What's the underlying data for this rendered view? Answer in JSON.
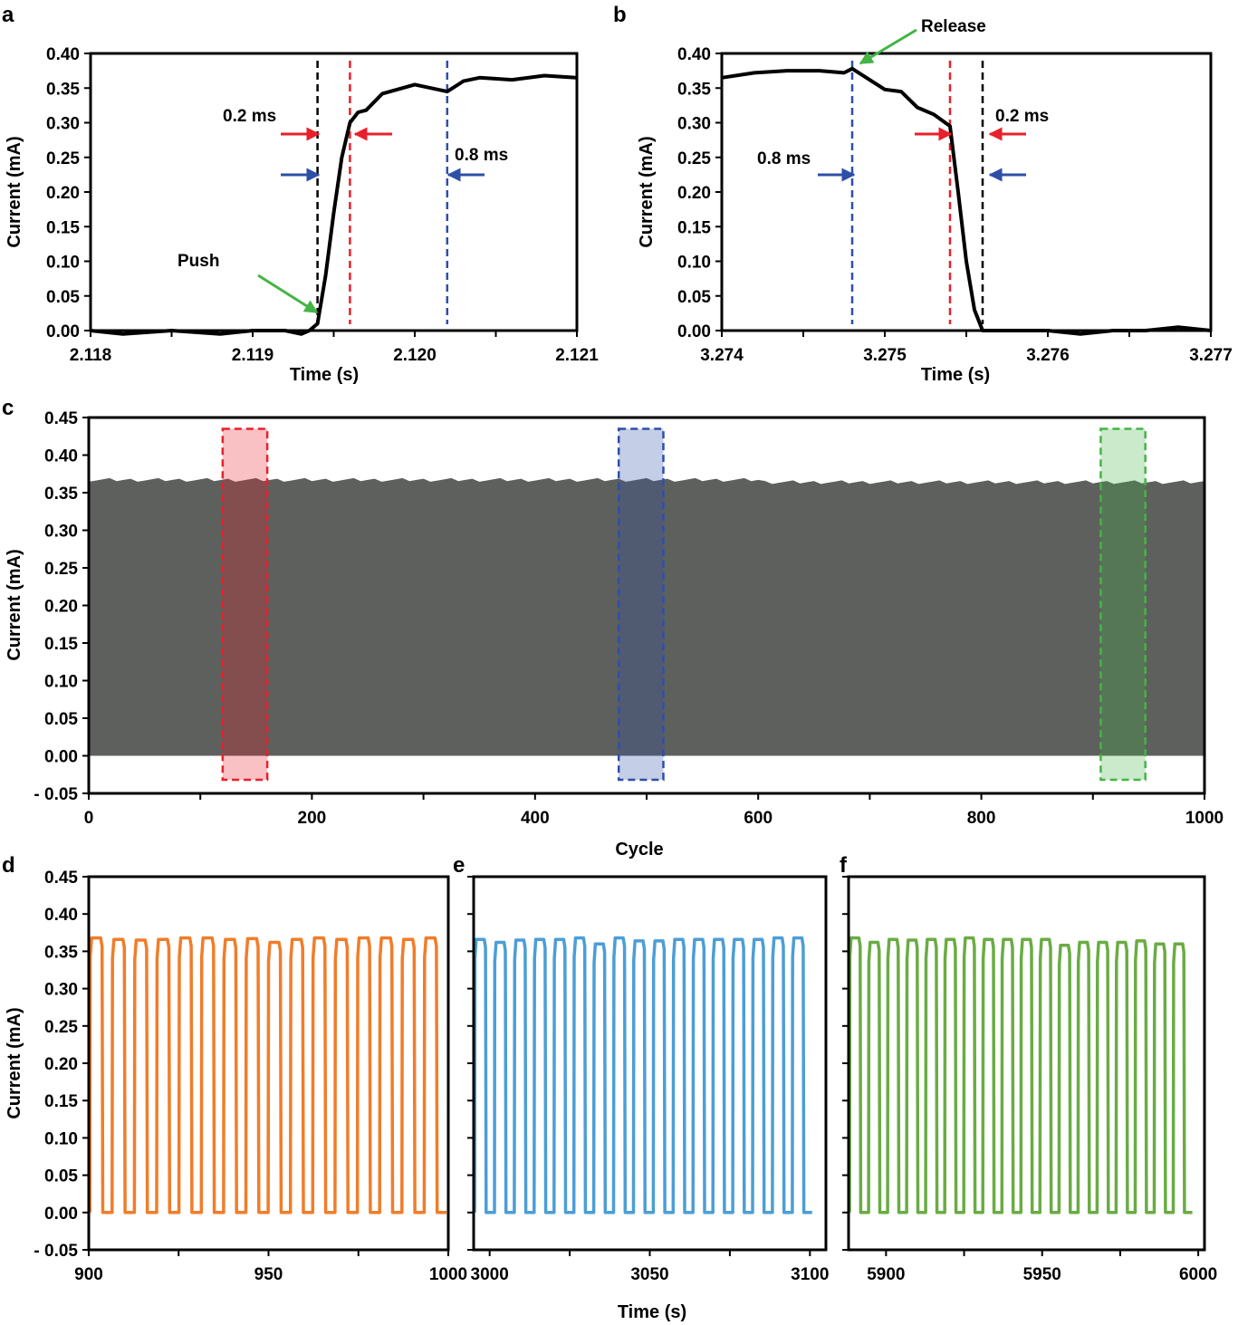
{
  "figure": {
    "panel_letters": [
      "a",
      "b",
      "c",
      "d",
      "e",
      "f"
    ]
  },
  "chart_data": [
    {
      "panel": "a",
      "type": "line",
      "xlabel": "Time (s)",
      "ylabel": "Current (mA)",
      "xlim": [
        2.118,
        2.121
      ],
      "ylim": [
        0.0,
        0.4
      ],
      "xticks": [
        "2.118",
        "2.119",
        "2.120",
        "2.121"
      ],
      "yticks": [
        "0.00",
        "0.05",
        "0.10",
        "0.15",
        "0.20",
        "0.25",
        "0.30",
        "0.35",
        "0.40"
      ],
      "series": [
        {
          "color": "#000000",
          "x": [
            2.118,
            2.1182,
            2.1185,
            2.1188,
            2.119,
            2.1192,
            2.1193,
            2.11935,
            2.1194,
            2.11945,
            2.1195,
            2.11955,
            2.1196,
            2.11965,
            2.1197,
            2.1198,
            2.12,
            2.1202,
            2.1203,
            2.1204,
            2.1206,
            2.1208,
            2.121
          ],
          "y": [
            0.0,
            -0.005,
            0.0,
            -0.005,
            0.0,
            0.0,
            -0.005,
            0.0,
            0.01,
            0.08,
            0.17,
            0.25,
            0.3,
            0.315,
            0.318,
            0.342,
            0.355,
            0.345,
            0.36,
            0.365,
            0.362,
            0.368,
            0.365
          ]
        }
      ],
      "vlines": [
        {
          "x": 2.1194,
          "color": "#000000"
        },
        {
          "x": 2.1196,
          "color": "#e8202a"
        },
        {
          "x": 2.1202,
          "color": "#2e4fa8"
        }
      ],
      "annotations": [
        {
          "text": "0.2 ms"
        },
        {
          "text": "0.8 ms"
        },
        {
          "text": "Push"
        }
      ]
    },
    {
      "panel": "b",
      "type": "line",
      "xlabel": "Time (s)",
      "ylabel": "Current (mA)",
      "xlim": [
        3.274,
        3.277
      ],
      "ylim": [
        0.0,
        0.4
      ],
      "xticks": [
        "3.274",
        "3.275",
        "3.276",
        "3.277"
      ],
      "yticks": [
        "0.00",
        "0.05",
        "0.10",
        "0.15",
        "0.20",
        "0.25",
        "0.30",
        "0.35",
        "0.40"
      ],
      "series": [
        {
          "color": "#000000",
          "x": [
            3.274,
            3.2742,
            3.2744,
            3.2746,
            3.27475,
            3.2748,
            3.275,
            3.2751,
            3.2752,
            3.2753,
            3.2754,
            3.27545,
            3.2755,
            3.27555,
            3.2756,
            3.2758,
            3.276,
            3.2762,
            3.2764,
            3.2766,
            3.2768,
            3.277
          ],
          "y": [
            0.365,
            0.372,
            0.375,
            0.375,
            0.372,
            0.378,
            0.348,
            0.345,
            0.322,
            0.312,
            0.295,
            0.2,
            0.1,
            0.03,
            0.0,
            0.0,
            0.0,
            -0.005,
            0.0,
            0.0,
            0.005,
            0.0
          ]
        }
      ],
      "vlines": [
        {
          "x": 3.2748,
          "color": "#2e4fa8"
        },
        {
          "x": 3.2754,
          "color": "#e8202a"
        },
        {
          "x": 3.2756,
          "color": "#000000"
        }
      ],
      "annotations": [
        {
          "text": "Release"
        },
        {
          "text": "0.8 ms"
        },
        {
          "text": "0.2 ms"
        }
      ]
    },
    {
      "panel": "c",
      "type": "area",
      "xlabel": "Cycle",
      "ylabel": "Current (mA)",
      "xlim": [
        0,
        1000
      ],
      "ylim": [
        -0.05,
        0.45
      ],
      "xticks": [
        "0",
        "200",
        "400",
        "600",
        "800",
        "1000"
      ],
      "yticks": [
        "- 0.05",
        "0.00",
        "0.05",
        "0.10",
        "0.15",
        "0.20",
        "0.25",
        "0.30",
        "0.35",
        "0.40",
        "0.45"
      ],
      "series": [
        {
          "color": "#5e605e",
          "peak_current": 0.366,
          "cycles": [
            0,
            1000
          ]
        }
      ],
      "highlights": [
        {
          "x": [
            120,
            160
          ],
          "color": "#e8202a"
        },
        {
          "x": [
            475,
            515
          ],
          "color": "#2e4fa8"
        },
        {
          "x": [
            907,
            947
          ],
          "color": "#44b444"
        }
      ]
    },
    {
      "panel": "d",
      "type": "line",
      "xlabel": "",
      "ylabel": "Current (mA)",
      "xlim": [
        900,
        1000
      ],
      "ylim": [
        -0.05,
        0.45
      ],
      "xticks": [
        "900",
        "950",
        "1000"
      ],
      "yticks": [
        "- 0.05",
        "0.00",
        "0.05",
        "0.10",
        "0.15",
        "0.20",
        "0.25",
        "0.30",
        "0.35",
        "0.40",
        "0.45"
      ],
      "series": [
        {
          "color": "#f07d2a",
          "period": 6.2,
          "pulse_width": 3.5,
          "high": 0.366,
          "low": 0.0,
          "peaks": [
            0.368,
            0.366,
            0.365,
            0.366,
            0.368,
            0.368,
            0.366,
            0.367,
            0.362,
            0.366,
            0.368,
            0.366,
            0.368,
            0.368,
            0.366,
            0.368
          ]
        }
      ]
    },
    {
      "panel": "e",
      "type": "line",
      "xlabel": "Time (s)",
      "ylabel": "",
      "xlim": [
        2995,
        3105
      ],
      "ylim": [
        -0.05,
        0.45
      ],
      "xticks": [
        "3000",
        "3050",
        "3100"
      ],
      "series": [
        {
          "color": "#4c9ed6",
          "period": 6.2,
          "pulse_width": 3.5,
          "high": 0.366,
          "low": 0.0,
          "peaks": [
            0.366,
            0.362,
            0.365,
            0.366,
            0.366,
            0.368,
            0.36,
            0.368,
            0.364,
            0.364,
            0.366,
            0.366,
            0.366,
            0.366,
            0.366,
            0.368,
            0.368
          ]
        }
      ]
    },
    {
      "panel": "f",
      "type": "line",
      "xlabel": "",
      "ylabel": "",
      "xlim": [
        5888,
        6002
      ],
      "ylim": [
        -0.05,
        0.45
      ],
      "xticks": [
        "5900",
        "5950",
        "6000"
      ],
      "series": [
        {
          "color": "#6aac44",
          "period": 6.1,
          "pulse_width": 3.5,
          "high": 0.366,
          "low": 0.0,
          "peaks": [
            0.368,
            0.362,
            0.366,
            0.365,
            0.366,
            0.366,
            0.368,
            0.366,
            0.366,
            0.366,
            0.366,
            0.358,
            0.362,
            0.362,
            0.362,
            0.364,
            0.36,
            0.36
          ]
        }
      ]
    }
  ]
}
